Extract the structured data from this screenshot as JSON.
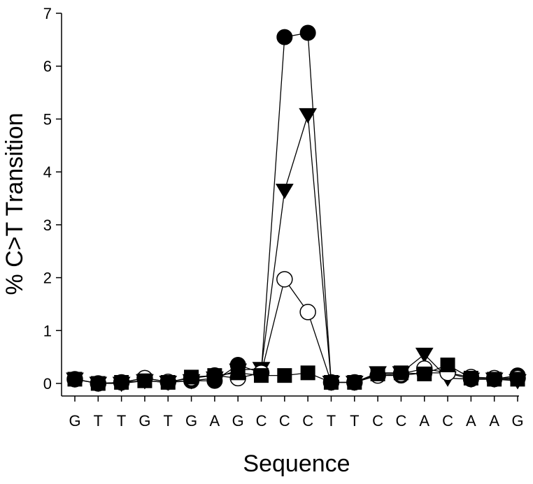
{
  "chart_data": {
    "type": "line",
    "title": "",
    "xlabel": "Sequence",
    "ylabel": "% C>T Transition",
    "categories": [
      "G",
      "T",
      "T",
      "G",
      "T",
      "G",
      "A",
      "G",
      "C",
      "C",
      "C",
      "T",
      "T",
      "C",
      "C",
      "A",
      "C",
      "A",
      "A",
      "G"
    ],
    "ylim": [
      0,
      7
    ],
    "yticks": [
      0,
      1,
      2,
      3,
      4,
      5,
      6,
      7
    ],
    "grid": false,
    "legend": "none",
    "series": [
      {
        "marker": "filled-circle",
        "values": [
          0.08,
          0.0,
          0.02,
          0.1,
          0.03,
          0.05,
          0.05,
          0.35,
          0.2,
          6.55,
          6.63,
          0.02,
          0.02,
          0.15,
          0.15,
          0.2,
          0.2,
          0.08,
          0.08,
          0.15
        ]
      },
      {
        "marker": "filled-triangle-down",
        "values": [
          0.08,
          0.0,
          0.0,
          0.05,
          0.02,
          0.05,
          0.1,
          0.25,
          0.28,
          3.65,
          5.08,
          0.02,
          0.02,
          0.2,
          0.2,
          0.55,
          0.1,
          0.08,
          0.08,
          0.05
        ]
      },
      {
        "marker": "open-circle",
        "values": [
          0.08,
          0.0,
          0.02,
          0.1,
          0.03,
          0.1,
          0.15,
          0.1,
          0.2,
          1.97,
          1.35,
          0.02,
          0.02,
          0.15,
          0.18,
          0.28,
          0.2,
          0.12,
          0.1,
          0.1
        ]
      },
      {
        "marker": "filled-square",
        "values": [
          0.08,
          0.0,
          0.02,
          0.05,
          0.02,
          0.12,
          0.15,
          0.2,
          0.15,
          0.15,
          0.2,
          0.02,
          0.02,
          0.18,
          0.2,
          0.18,
          0.35,
          0.1,
          0.08,
          0.08
        ]
      }
    ]
  }
}
